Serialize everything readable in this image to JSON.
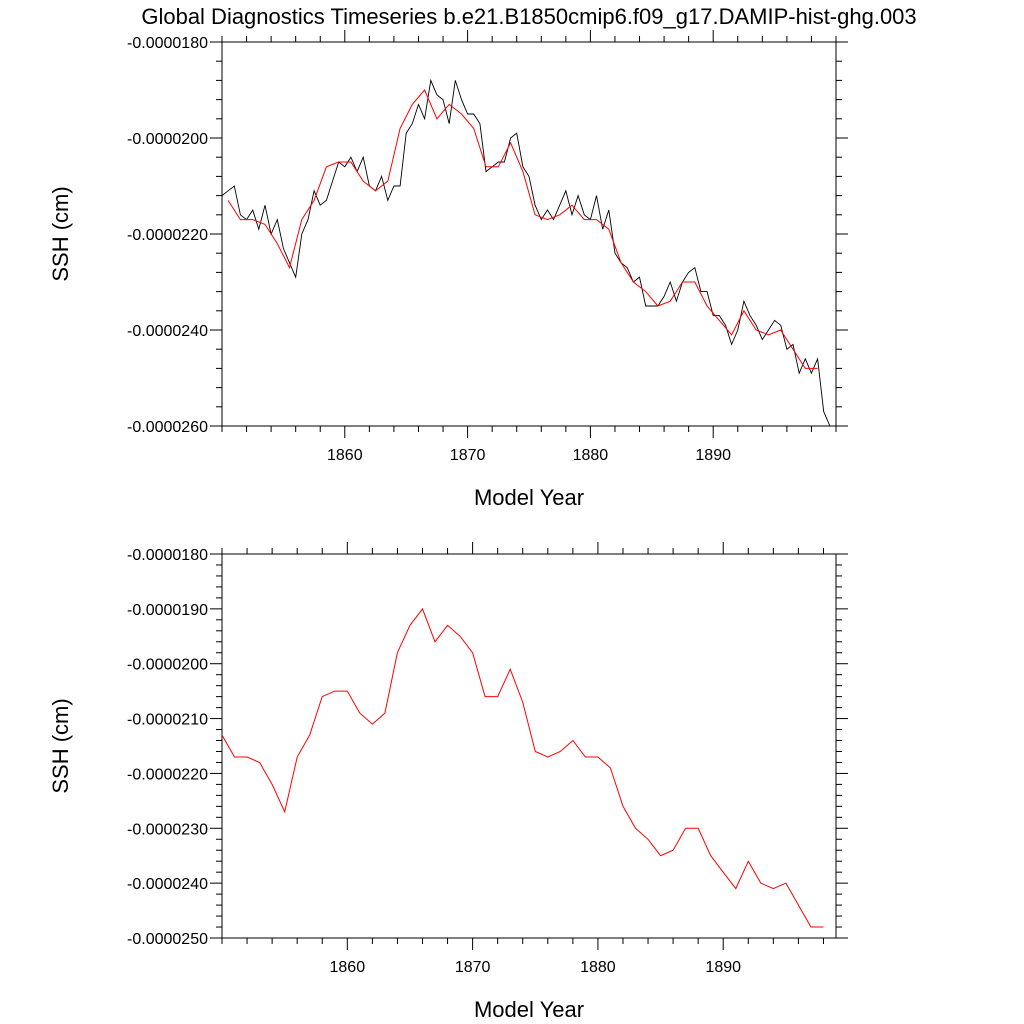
{
  "title": "Global Diagnostics Timeseries b.e21.B1850cmip6.f09_g17.DAMIP-hist-ghg.003",
  "colors": {
    "raw": "#000000",
    "smooth": "#ff0000",
    "background": "#ffffff"
  },
  "chart_data": [
    {
      "type": "line",
      "xlabel": "Model Year",
      "ylabel": "SSH (cm)",
      "xlim": [
        1850,
        1900
      ],
      "ylim": [
        -2.6e-05,
        -1.8e-05
      ],
      "xticks": [
        1860,
        1870,
        1880,
        1890
      ],
      "xtick_labels": [
        "1860",
        "1870",
        "1880",
        "1890"
      ],
      "yticks": [
        -1.8e-05,
        -2e-05,
        -2.2e-05,
        -2.4e-05,
        -2.6e-05
      ],
      "ytick_labels": [
        "-0.0000180",
        "-0.0000200",
        "-0.0000220",
        "-0.0000240",
        "-0.0000260"
      ],
      "series": [
        {
          "kind": "monthly",
          "color": "#000000",
          "x": [
            1850.0,
            1850.5,
            1851.0,
            1851.5,
            1852.0,
            1852.5,
            1853.0,
            1853.5,
            1854.0,
            1854.5,
            1855.0,
            1855.5,
            1856.0,
            1856.5,
            1857.0,
            1857.5,
            1858.0,
            1858.5,
            1859.0,
            1859.5,
            1860.0,
            1860.5,
            1861.0,
            1861.5,
            1862.0,
            1862.5,
            1863.0,
            1863.5,
            1864.0,
            1864.5,
            1865.0,
            1865.5,
            1866.0,
            1866.5,
            1867.0,
            1867.5,
            1868.0,
            1868.5,
            1869.0,
            1869.5,
            1870.0,
            1870.5,
            1871.0,
            1871.5,
            1872.0,
            1872.5,
            1873.0,
            1873.5,
            1874.0,
            1874.5,
            1875.0,
            1875.5,
            1876.0,
            1876.5,
            1877.0,
            1877.5,
            1878.0,
            1878.5,
            1879.0,
            1879.5,
            1880.0,
            1880.5,
            1881.0,
            1881.5,
            1882.0,
            1882.5,
            1883.0,
            1883.5,
            1884.0,
            1884.5,
            1885.0,
            1885.5,
            1886.0,
            1886.5,
            1887.0,
            1887.5,
            1888.0,
            1888.5,
            1889.0,
            1889.5,
            1890.0,
            1890.5,
            1891.0,
            1891.5,
            1892.0,
            1892.5,
            1893.0,
            1893.5,
            1894.0,
            1894.5,
            1895.0,
            1895.5,
            1896.0,
            1896.5,
            1897.0,
            1897.5,
            1898.0,
            1898.5,
            1899.0,
            1899.5
          ],
          "values": [
            -2.12e-05,
            -2.11e-05,
            -2.1e-05,
            -2.16e-05,
            -2.17e-05,
            -2.15e-05,
            -2.19e-05,
            -2.14e-05,
            -2.2e-05,
            -2.17e-05,
            -2.23e-05,
            -2.26e-05,
            -2.29e-05,
            -2.2e-05,
            -2.17e-05,
            -2.11e-05,
            -2.14e-05,
            -2.13e-05,
            -2.09e-05,
            -2.05e-05,
            -2.06e-05,
            -2.04e-05,
            -2.07e-05,
            -2.04e-05,
            -2.1e-05,
            -2.11e-05,
            -2.08e-05,
            -2.13e-05,
            -2.1e-05,
            -2.1e-05,
            -1.99e-05,
            -1.97e-05,
            -1.93e-05,
            -1.96e-05,
            -1.88e-05,
            -1.91e-05,
            -1.92e-05,
            -1.97e-05,
            -1.88e-05,
            -1.92e-05,
            -1.95e-05,
            -1.95e-05,
            -1.97e-05,
            -2.07e-05,
            -2.06e-05,
            -2.05e-05,
            -2.05e-05,
            -2e-05,
            -1.99e-05,
            -2.06e-05,
            -2.08e-05,
            -2.14e-05,
            -2.17e-05,
            -2.15e-05,
            -2.17e-05,
            -2.14e-05,
            -2.11e-05,
            -2.16e-05,
            -2.12e-05,
            -2.16e-05,
            -2.17e-05,
            -2.12e-05,
            -2.19e-05,
            -2.15e-05,
            -2.24e-05,
            -2.26e-05,
            -2.27e-05,
            -2.3e-05,
            -2.29e-05,
            -2.35e-05,
            -2.35e-05,
            -2.35e-05,
            -2.33e-05,
            -2.3e-05,
            -2.34e-05,
            -2.3e-05,
            -2.28e-05,
            -2.27e-05,
            -2.32e-05,
            -2.32e-05,
            -2.37e-05,
            -2.37e-05,
            -2.39e-05,
            -2.43e-05,
            -2.4e-05,
            -2.34e-05,
            -2.37e-05,
            -2.39e-05,
            -2.42e-05,
            -2.4e-05,
            -2.38e-05,
            -2.39e-05,
            -2.44e-05,
            -2.43e-05,
            -2.49e-05,
            -2.46e-05,
            -2.49e-05,
            -2.46e-05,
            -2.57e-05,
            -2.6e-05
          ]
        },
        {
          "kind": "annual",
          "color": "#ff0000",
          "x": [
            1850.5,
            1851.5,
            1852.5,
            1853.5,
            1854.5,
            1855.5,
            1856.5,
            1857.5,
            1858.5,
            1859.5,
            1860.5,
            1861.5,
            1862.5,
            1863.5,
            1864.5,
            1865.5,
            1866.5,
            1867.5,
            1868.5,
            1869.5,
            1870.5,
            1871.5,
            1872.5,
            1873.5,
            1874.5,
            1875.5,
            1876.5,
            1877.5,
            1878.5,
            1879.5,
            1880.5,
            1881.5,
            1882.5,
            1883.5,
            1884.5,
            1885.5,
            1886.5,
            1887.5,
            1888.5,
            1889.5,
            1890.5,
            1891.5,
            1892.5,
            1893.5,
            1894.5,
            1895.5,
            1896.5,
            1897.5,
            1898.5
          ],
          "values": [
            -2.13e-05,
            -2.17e-05,
            -2.17e-05,
            -2.18e-05,
            -2.22e-05,
            -2.27e-05,
            -2.17e-05,
            -2.13e-05,
            -2.06e-05,
            -2.05e-05,
            -2.05e-05,
            -2.09e-05,
            -2.11e-05,
            -2.09e-05,
            -1.98e-05,
            -1.93e-05,
            -1.9e-05,
            -1.96e-05,
            -1.93e-05,
            -1.95e-05,
            -1.98e-05,
            -2.06e-05,
            -2.06e-05,
            -2.01e-05,
            -2.07e-05,
            -2.16e-05,
            -2.17e-05,
            -2.16e-05,
            -2.14e-05,
            -2.17e-05,
            -2.17e-05,
            -2.19e-05,
            -2.26e-05,
            -2.3e-05,
            -2.32e-05,
            -2.35e-05,
            -2.34e-05,
            -2.3e-05,
            -2.3e-05,
            -2.35e-05,
            -2.38e-05,
            -2.41e-05,
            -2.36e-05,
            -2.4e-05,
            -2.41e-05,
            -2.4e-05,
            -2.44e-05,
            -2.48e-05,
            -2.48e-05
          ]
        }
      ]
    },
    {
      "type": "line",
      "xlabel": "Model Year",
      "ylabel": "SSH (cm)",
      "xlim": [
        1850,
        1899
      ],
      "ylim": [
        -2.5e-05,
        -1.8e-05
      ],
      "xticks": [
        1860,
        1870,
        1880,
        1890
      ],
      "xtick_labels": [
        "1860",
        "1870",
        "1880",
        "1890"
      ],
      "yticks": [
        -1.8e-05,
        -1.9e-05,
        -2e-05,
        -2.1e-05,
        -2.2e-05,
        -2.3e-05,
        -2.4e-05,
        -2.5e-05
      ],
      "ytick_labels": [
        "-0.0000180",
        "-0.0000190",
        "-0.0000200",
        "-0.0000210",
        "-0.0000220",
        "-0.0000230",
        "-0.0000240",
        "-0.0000250"
      ],
      "series": [
        {
          "kind": "annual",
          "color": "#ff0000",
          "x": [
            1850.0,
            1851.0,
            1852.0,
            1853.0,
            1854.0,
            1855.0,
            1856.0,
            1857.0,
            1858.0,
            1859.0,
            1860.0,
            1861.0,
            1862.0,
            1863.0,
            1864.0,
            1865.0,
            1866.0,
            1867.0,
            1868.0,
            1869.0,
            1870.0,
            1871.0,
            1872.0,
            1873.0,
            1874.0,
            1875.0,
            1876.0,
            1877.0,
            1878.0,
            1879.0,
            1880.0,
            1881.0,
            1882.0,
            1883.0,
            1884.0,
            1885.0,
            1886.0,
            1887.0,
            1888.0,
            1889.0,
            1890.0,
            1891.0,
            1892.0,
            1893.0,
            1894.0,
            1895.0,
            1896.0,
            1897.0,
            1898.0
          ],
          "values": [
            -2.13e-05,
            -2.17e-05,
            -2.17e-05,
            -2.18e-05,
            -2.22e-05,
            -2.27e-05,
            -2.17e-05,
            -2.13e-05,
            -2.06e-05,
            -2.05e-05,
            -2.05e-05,
            -2.09e-05,
            -2.11e-05,
            -2.09e-05,
            -1.98e-05,
            -1.93e-05,
            -1.9e-05,
            -1.96e-05,
            -1.93e-05,
            -1.95e-05,
            -1.98e-05,
            -2.06e-05,
            -2.06e-05,
            -2.01e-05,
            -2.07e-05,
            -2.16e-05,
            -2.17e-05,
            -2.16e-05,
            -2.14e-05,
            -2.17e-05,
            -2.17e-05,
            -2.19e-05,
            -2.26e-05,
            -2.3e-05,
            -2.32e-05,
            -2.35e-05,
            -2.34e-05,
            -2.3e-05,
            -2.3e-05,
            -2.35e-05,
            -2.38e-05,
            -2.41e-05,
            -2.36e-05,
            -2.4e-05,
            -2.41e-05,
            -2.4e-05,
            -2.44e-05,
            -2.48e-05,
            -2.48e-05
          ]
        }
      ]
    }
  ]
}
